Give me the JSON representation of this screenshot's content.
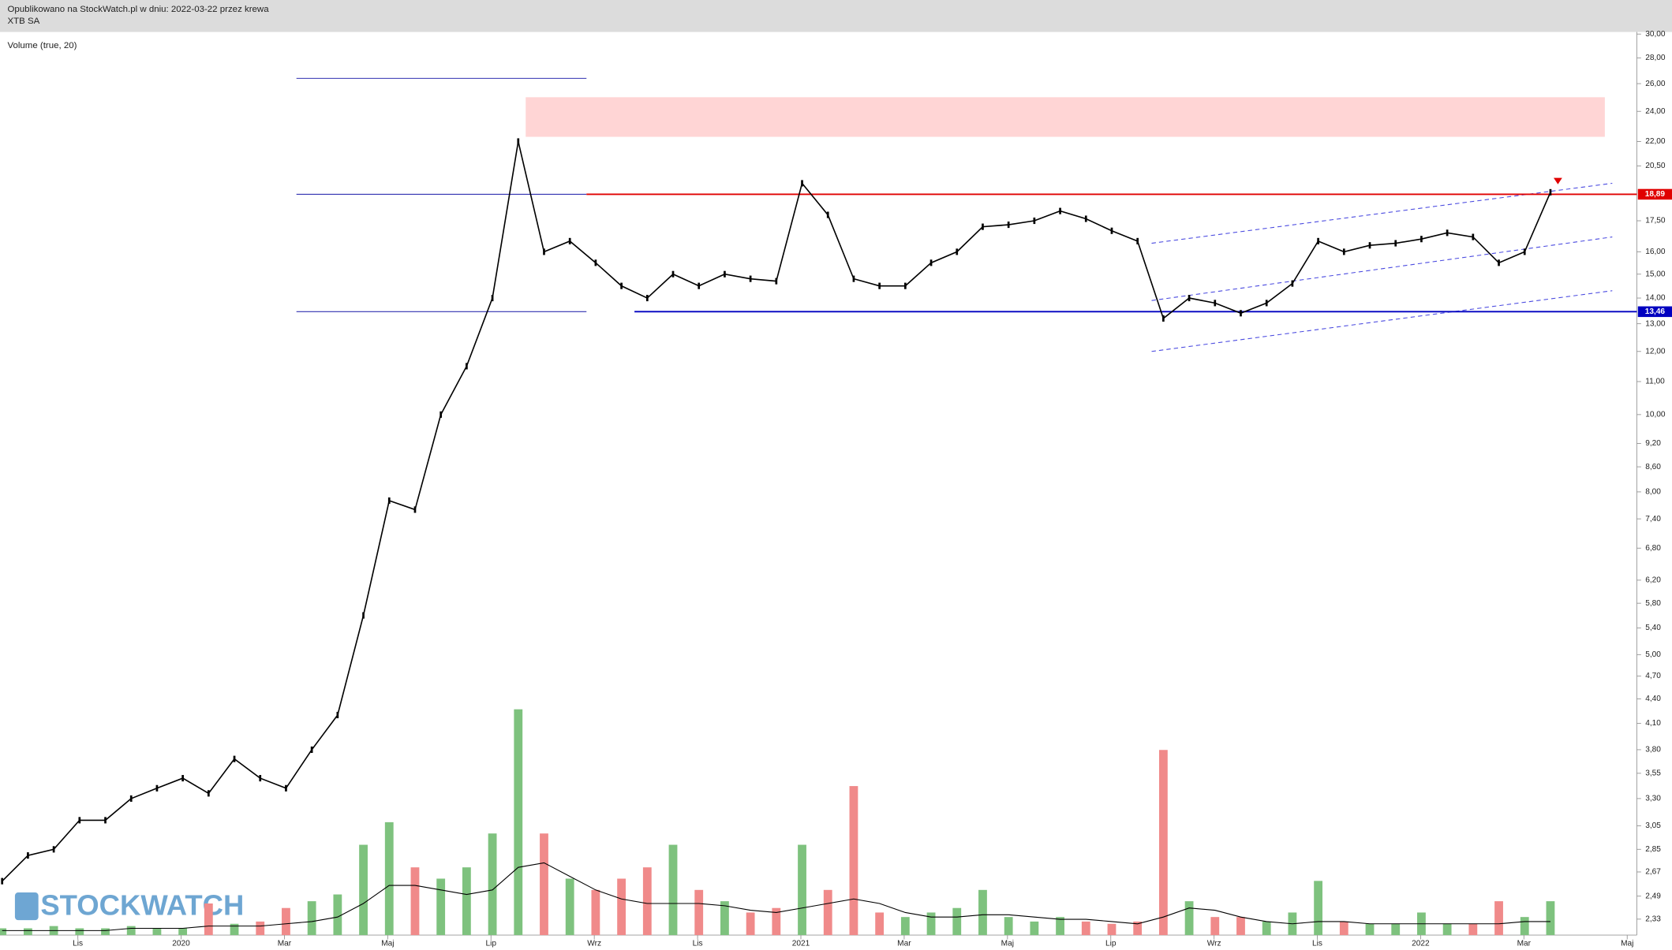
{
  "header": {
    "published": "Opublikowano na StockWatch.pl w dniu: 2022-03-22 przez krewa",
    "symbol": "XTB SA"
  },
  "watermark": "STOCKWATCH",
  "chart_data": {
    "type": "line",
    "indicator_label": "Volume (true, 20)",
    "log_scale": true,
    "ylim": [
      2.33,
      30
    ],
    "yticks": [
      {
        "value": 2.33,
        "label": "2,33"
      },
      {
        "value": 2.49,
        "label": "2,49"
      },
      {
        "value": 2.67,
        "label": "2,67"
      },
      {
        "value": 2.85,
        "label": "2,85"
      },
      {
        "value": 3.05,
        "label": "3,05"
      },
      {
        "value": 3.3,
        "label": "3,30"
      },
      {
        "value": 3.55,
        "label": "3,55"
      },
      {
        "value": 3.8,
        "label": "3,80"
      },
      {
        "value": 4.1,
        "label": "4,10"
      },
      {
        "value": 4.4,
        "label": "4,40"
      },
      {
        "value": 4.7,
        "label": "4,70"
      },
      {
        "value": 5,
        "label": "5,00"
      },
      {
        "value": 5.4,
        "label": "5,40"
      },
      {
        "value": 5.8,
        "label": "5,80"
      },
      {
        "value": 6.2,
        "label": "6,20"
      },
      {
        "value": 6.8,
        "label": "6,80"
      },
      {
        "value": 7.4,
        "label": "7,40"
      },
      {
        "value": 8,
        "label": "8,00"
      },
      {
        "value": 8.6,
        "label": "8,60"
      },
      {
        "value": 9.2,
        "label": "9,20"
      },
      {
        "value": 10,
        "label": "10,00"
      },
      {
        "value": 11,
        "label": "11,00"
      },
      {
        "value": 12,
        "label": "12,00"
      },
      {
        "value": 13,
        "label": "13,00"
      },
      {
        "value": 14,
        "label": "14,00"
      },
      {
        "value": 15,
        "label": "15,00"
      },
      {
        "value": 16,
        "label": "16,00"
      },
      {
        "value": 17.5,
        "label": "17,50"
      },
      {
        "value": 20.5,
        "label": "20,50"
      },
      {
        "value": 22,
        "label": "22,00"
      },
      {
        "value": 24,
        "label": "24,00"
      },
      {
        "value": 26,
        "label": "26,00"
      },
      {
        "value": 28,
        "label": "28,00"
      },
      {
        "value": 30,
        "label": "30,00"
      }
    ],
    "x_labels": [
      "Lis",
      "2020",
      "Mar",
      "Maj",
      "Lip",
      "Wrz",
      "Lis",
      "2021",
      "Mar",
      "Maj",
      "Lip",
      "Wrz",
      "Lis",
      "2022",
      "Mar",
      "Maj"
    ],
    "series": [
      {
        "name": "XTB SA",
        "color": "#000000",
        "values": [
          2.6,
          2.8,
          2.85,
          3.1,
          3.1,
          3.3,
          3.4,
          3.5,
          3.35,
          3.7,
          3.5,
          3.4,
          3.8,
          4.2,
          5.6,
          7.8,
          7.6,
          10,
          11.5,
          14,
          22,
          16,
          16.5,
          15.5,
          14.5,
          14,
          15,
          14.5,
          15,
          14.8,
          14.7,
          19.5,
          17.8,
          14.8,
          14.5,
          14.5,
          15.5,
          16,
          17.2,
          17.3,
          17.5,
          18,
          17.6,
          17,
          16.5,
          13.2,
          14,
          13.8,
          13.4,
          13.8,
          14.6,
          16.5,
          16,
          16.3,
          16.4,
          16.6,
          16.9,
          16.7,
          15.5,
          16,
          19
        ]
      }
    ],
    "volume": {
      "vlim": [
        0,
        100
      ],
      "up_color": "#7ec27e",
      "down_color": "#f08a8a",
      "values": [
        3,
        3,
        4,
        3,
        3,
        4,
        3,
        3,
        14,
        5,
        6,
        12,
        15,
        18,
        40,
        50,
        30,
        25,
        30,
        45,
        100,
        45,
        25,
        20,
        25,
        30,
        40,
        20,
        15,
        10,
        12,
        40,
        20,
        66,
        10,
        8,
        10,
        12,
        20,
        8,
        6,
        8,
        6,
        5,
        6,
        82,
        15,
        8,
        8,
        6,
        10,
        24,
        6,
        5,
        5,
        10,
        5,
        5,
        15,
        8,
        15
      ],
      "ma": [
        2,
        2,
        2,
        2,
        2,
        3,
        3,
        3,
        4,
        4,
        4,
        5,
        6,
        8,
        14,
        22,
        22,
        20,
        18,
        20,
        30,
        32,
        26,
        20,
        16,
        14,
        14,
        14,
        13,
        11,
        10,
        12,
        14,
        16,
        14,
        10,
        8,
        8,
        9,
        9,
        8,
        7,
        7,
        6,
        5,
        8,
        12,
        11,
        8,
        6,
        5,
        6,
        6,
        5,
        5,
        5,
        5,
        5,
        5,
        6,
        6
      ]
    },
    "levels": [
      {
        "value": 18.89,
        "label": "18,89",
        "color": "#e00000"
      },
      {
        "value": 13.46,
        "label": "13,46",
        "color": "#0000c0"
      }
    ],
    "short_levels": [
      26.4,
      18.89,
      13.46
    ],
    "zone": [
      22.3,
      25
    ],
    "channel": [
      [
        12,
        14.3
      ],
      [
        13.9,
        16.7
      ],
      [
        16.4,
        19.5
      ]
    ]
  }
}
